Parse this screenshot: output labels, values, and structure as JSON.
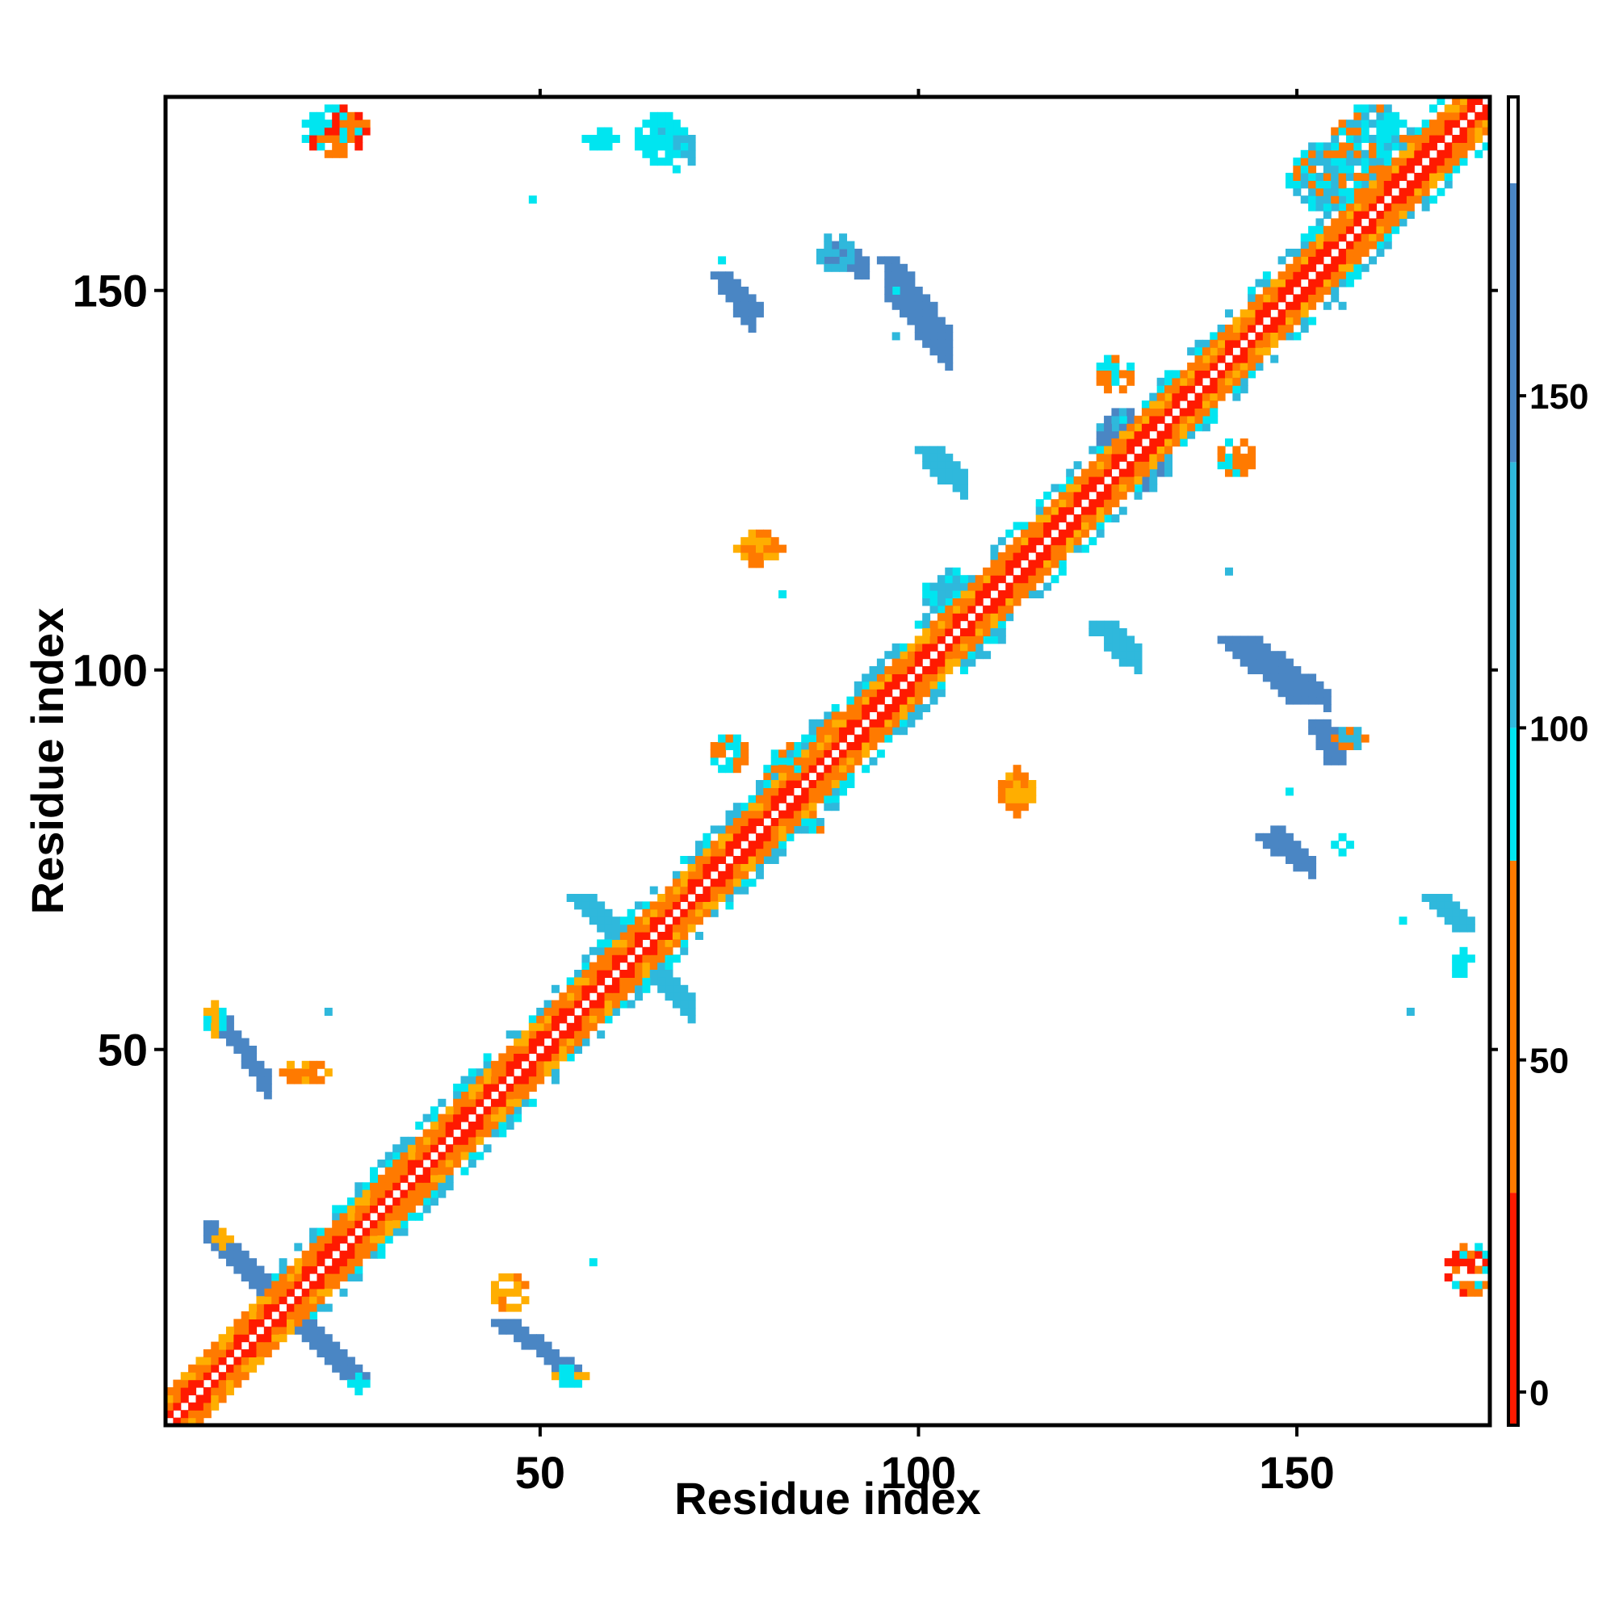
{
  "chart_data": {
    "type": "heatmap",
    "title": "",
    "xlabel": "Residue index",
    "ylabel": "Residue index",
    "xlim": [
      1,
      175
    ],
    "ylim": [
      1,
      175
    ],
    "xticks": [
      50,
      100,
      150
    ],
    "yticks": [
      50,
      100,
      150
    ],
    "grid": false,
    "legend": "colorbar-right",
    "colorbar": {
      "ticks": [
        0,
        50,
        100,
        150
      ],
      "range": [
        -5,
        195
      ],
      "bands": [
        {
          "from": -5,
          "to": 30,
          "color": "#ff1a00"
        },
        {
          "from": 30,
          "to": 80,
          "color": "#ff7a00"
        },
        {
          "from": 80,
          "to": 100,
          "color": "#00e5f0"
        },
        {
          "from": 100,
          "to": 140,
          "color": "#2fb8dc"
        },
        {
          "from": 140,
          "to": 182,
          "color": "#4a86c4"
        },
        {
          "from": 182,
          "to": 195,
          "color": "#ffffff"
        }
      ]
    },
    "symmetric": true,
    "regions": [
      {
        "name": "diagonal",
        "kind": "band",
        "from": [
          1,
          1
        ],
        "to": [
          175,
          175
        ],
        "width": 3,
        "colors": [
          "#ff1a00",
          "#ff7a00",
          "#ffae00"
        ]
      },
      {
        "name": "diagonal-cyan",
        "kind": "band",
        "from": [
          20,
          20
        ],
        "to": [
          175,
          175
        ],
        "width": 6,
        "colors": [
          "#00e5f0",
          "#2fb8dc"
        ],
        "density": 0.35
      },
      {
        "name": "antiparallel-1",
        "kind": "line",
        "from": [
          7,
          26
        ],
        "to": [
          26,
          6
        ],
        "width": 3,
        "color": "#4a86c4"
      },
      {
        "name": "antiparallel-2",
        "kind": "line",
        "from": [
          55,
          70
        ],
        "to": [
          69,
          56
        ],
        "width": 3,
        "color": "#2fb8dc"
      },
      {
        "name": "sheet-1",
        "kind": "line",
        "from": [
          45,
          14
        ],
        "to": [
          55,
          7
        ],
        "width": 3,
        "color": "#4a86c4"
      },
      {
        "name": "sheet-2",
        "kind": "line",
        "from": [
          74,
          152
        ],
        "to": [
          78,
          147
        ],
        "width": 2,
        "color": "#4a86c4"
      },
      {
        "name": "sheet-3",
        "kind": "line",
        "from": [
          96,
          154
        ],
        "to": [
          103,
          144
        ],
        "width": 3,
        "color": "#4a86c4"
      },
      {
        "name": "sheet-4",
        "kind": "line",
        "from": [
          101,
          129
        ],
        "to": [
          105,
          125
        ],
        "width": 3,
        "color": "#2fb8dc"
      },
      {
        "name": "sheet-5",
        "kind": "line",
        "from": [
          124,
          106
        ],
        "to": [
          128,
          101
        ],
        "width": 3,
        "color": "#2fb8dc"
      },
      {
        "name": "sheet-6",
        "kind": "line",
        "from": [
          141,
          104
        ],
        "to": [
          150,
          96
        ],
        "width": 3,
        "color": "#4a86c4"
      },
      {
        "name": "sheet-7",
        "kind": "line",
        "from": [
          146,
          78
        ],
        "to": [
          151,
          74
        ],
        "width": 2,
        "color": "#4a86c4"
      },
      {
        "name": "sheet-8",
        "kind": "line",
        "from": [
          168,
          70
        ],
        "to": [
          172,
          66
        ],
        "width": 2,
        "color": "#2fb8dc"
      },
      {
        "name": "sheet-9",
        "kind": "line",
        "from": [
          153,
          93
        ],
        "to": [
          155,
          88
        ],
        "width": 2,
        "color": "#4a86c4"
      },
      {
        "name": "corner-1",
        "kind": "blob",
        "center": [
          23,
          171
        ],
        "size": [
          4,
          3
        ],
        "colors": [
          "#ff1a00",
          "#ff7a00",
          "#00e5f0"
        ]
      },
      {
        "name": "corner-2",
        "kind": "blob",
        "center": [
          173,
          21
        ],
        "size": [
          3,
          3
        ],
        "colors": [
          "#ff1a00",
          "#ff7a00",
          "#00e5f0"
        ]
      },
      {
        "name": "blob-1",
        "kind": "blob",
        "center": [
          79,
          116
        ],
        "size": [
          3,
          2
        ],
        "colors": [
          "#ff7a00",
          "#ffae00"
        ]
      },
      {
        "name": "blob-2",
        "kind": "blob",
        "center": [
          113,
          84
        ],
        "size": [
          2,
          3
        ],
        "colors": [
          "#ff7a00",
          "#ffae00"
        ]
      },
      {
        "name": "blob-3",
        "kind": "blob",
        "center": [
          127,
          131
        ],
        "size": [
          3,
          3
        ],
        "colors": [
          "#4a86c4",
          "#2fb8dc"
        ]
      },
      {
        "name": "blob-4",
        "kind": "blob",
        "center": [
          130,
          127
        ],
        "size": [
          3,
          3
        ],
        "colors": [
          "#4a86c4",
          "#2fb8dc"
        ]
      },
      {
        "name": "blob-5",
        "kind": "blob",
        "center": [
          104,
          110
        ],
        "size": [
          3,
          3
        ],
        "colors": [
          "#2fb8dc",
          "#00e5f0"
        ]
      },
      {
        "name": "blob-6",
        "kind": "blob",
        "center": [
          108,
          105
        ],
        "size": [
          3,
          3
        ],
        "colors": [
          "#2fb8dc",
          "#00e5f0"
        ]
      },
      {
        "name": "blob-7",
        "kind": "blob",
        "center": [
          89,
          90
        ],
        "size": [
          4,
          4
        ],
        "colors": [
          "#00e5f0",
          "#2fb8dc",
          "#ff7a00"
        ]
      },
      {
        "name": "blob-8",
        "kind": "blob",
        "center": [
          84,
          86
        ],
        "size": [
          4,
          4
        ],
        "colors": [
          "#00e5f0",
          "#2fb8dc",
          "#ff7a00"
        ]
      },
      {
        "name": "blob-9",
        "kind": "blob",
        "center": [
          66,
          170
        ],
        "size": [
          3,
          3
        ],
        "colors": [
          "#00e5f0"
        ]
      },
      {
        "name": "blob-10",
        "kind": "blob",
        "center": [
          58,
          170
        ],
        "size": [
          2,
          1
        ],
        "colors": [
          "#00e5f0"
        ]
      },
      {
        "name": "blob-11",
        "kind": "blob",
        "center": [
          154,
          165
        ],
        "size": [
          5,
          4
        ],
        "colors": [
          "#00e5f0",
          "#2fb8dc",
          "#ff7a00"
        ]
      },
      {
        "name": "blob-12",
        "kind": "blob",
        "center": [
          160,
          170
        ],
        "size": [
          5,
          4
        ],
        "colors": [
          "#00e5f0",
          "#2fb8dc",
          "#ff7a00"
        ]
      },
      {
        "name": "blob-13",
        "kind": "blob",
        "center": [
          89,
          155
        ],
        "size": [
          2,
          2
        ],
        "colors": [
          "#2fb8dc"
        ]
      },
      {
        "name": "blob-14",
        "kind": "blob",
        "center": [
          126,
          139
        ],
        "size": [
          2,
          2
        ],
        "colors": [
          "#00e5f0",
          "#ff7a00"
        ]
      },
      {
        "name": "blob-15",
        "kind": "blob",
        "center": [
          142,
          128
        ],
        "size": [
          2,
          2
        ],
        "colors": [
          "#00e5f0",
          "#ff7a00"
        ]
      },
      {
        "name": "blob-16",
        "kind": "blob",
        "center": [
          172,
          61
        ],
        "size": [
          1,
          2
        ],
        "colors": [
          "#00e5f0"
        ]
      },
      {
        "name": "blob-17",
        "kind": "blob",
        "center": [
          7,
          54
        ],
        "size": [
          1,
          2
        ],
        "colors": [
          "#00e5f0",
          "#ffae00"
        ]
      },
      {
        "name": "blob-18",
        "kind": "blob",
        "center": [
          19,
          47
        ],
        "size": [
          3,
          1
        ],
        "colors": [
          "#ff7a00",
          "#ffae00"
        ]
      },
      {
        "name": "blob-19",
        "kind": "blob",
        "center": [
          46,
          18
        ],
        "size": [
          2,
          2
        ],
        "colors": [
          "#ff7a00",
          "#ffae00"
        ]
      },
      {
        "name": "blob-20",
        "kind": "blob",
        "center": [
          54,
          7
        ],
        "size": [
          2,
          1
        ],
        "colors": [
          "#00e5f0",
          "#ffae00"
        ]
      },
      {
        "name": "blob-21",
        "kind": "blob",
        "center": [
          8,
          25
        ],
        "size": [
          1,
          1
        ],
        "colors": [
          "#ffae00"
        ]
      },
      {
        "name": "blob-22",
        "kind": "blob",
        "center": [
          26,
          6
        ],
        "size": [
          1,
          1
        ],
        "colors": [
          "#00e5f0"
        ]
      },
      {
        "name": "blob-23",
        "kind": "blob",
        "center": [
          86,
          80
        ],
        "size": [
          2,
          1
        ],
        "colors": [
          "#00e5f0",
          "#ff7a00"
        ]
      },
      {
        "name": "blob-24",
        "kind": "blob",
        "center": [
          75,
          89
        ],
        "size": [
          2,
          2
        ],
        "colors": [
          "#ff7a00",
          "#00e5f0"
        ]
      },
      {
        "name": "blob-25",
        "kind": "blob",
        "center": [
          156,
          77
        ],
        "size": [
          1,
          1
        ],
        "colors": [
          "#00e5f0"
        ]
      },
      {
        "name": "blob-26",
        "kind": "blob",
        "center": [
          157,
          91
        ],
        "size": [
          2,
          1
        ],
        "colors": [
          "#2fb8dc",
          "#ff7a00"
        ]
      }
    ],
    "isolated_points": [
      [
        49,
        162
      ],
      [
        74,
        154
      ],
      [
        68,
        166
      ],
      [
        123,
        105
      ],
      [
        141,
        113
      ],
      [
        97,
        144
      ],
      [
        97,
        150
      ],
      [
        156,
        148
      ],
      [
        149,
        84
      ],
      [
        164,
        67
      ],
      [
        165,
        55
      ],
      [
        156,
        91
      ],
      [
        87,
        80
      ],
      [
        89,
        82
      ],
      [
        84,
        87
      ],
      [
        82,
        110
      ],
      [
        22,
        55
      ],
      [
        57,
        22
      ]
    ]
  }
}
